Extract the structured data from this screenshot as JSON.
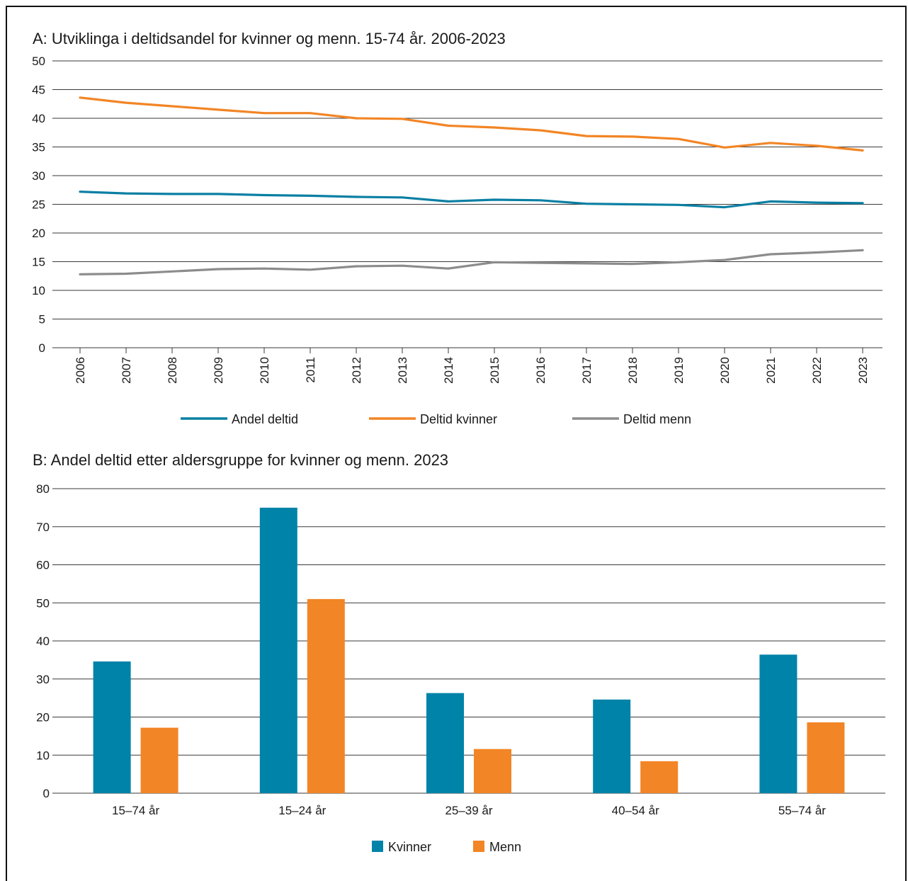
{
  "chart_data": [
    {
      "type": "line",
      "title": "A: Utviklinga i deltidsandel for kvinner og menn. 15-74 år. 2006-2023",
      "xlabel": "",
      "ylabel": "",
      "ylim": [
        0,
        50
      ],
      "yticks": [
        "0",
        "5",
        "10",
        "15",
        "20",
        "25",
        "30",
        "35",
        "40",
        "45",
        "50"
      ],
      "grid": true,
      "legend": "bottom",
      "x": [
        "2006",
        "2007",
        "2008",
        "2009",
        "2010",
        "2011",
        "2012",
        "2013",
        "2014",
        "2015",
        "2016",
        "2017",
        "2018",
        "2019",
        "2020",
        "2021",
        "2022",
        "2023"
      ],
      "series": [
        {
          "name": "Andel deltid",
          "color": "#0a7fa3",
          "values": [
            27.2,
            26.9,
            26.8,
            26.8,
            26.6,
            26.5,
            26.3,
            26.2,
            25.5,
            25.8,
            25.7,
            25.1,
            25.0,
            24.9,
            24.5,
            25.5,
            25.3,
            25.2
          ]
        },
        {
          "name": "Deltid kvinner",
          "color": "#f28525",
          "values": [
            43.6,
            42.7,
            42.1,
            41.5,
            40.9,
            40.9,
            40.0,
            39.9,
            38.7,
            38.4,
            37.9,
            36.9,
            36.8,
            36.4,
            34.9,
            35.7,
            35.2,
            34.4
          ]
        },
        {
          "name": "Deltid menn",
          "color": "#8c8c8c",
          "values": [
            12.8,
            12.9,
            13.3,
            13.7,
            13.8,
            13.6,
            14.2,
            14.3,
            13.8,
            14.9,
            14.8,
            14.7,
            14.6,
            14.9,
            15.3,
            16.3,
            16.6,
            17.0
          ]
        }
      ]
    },
    {
      "type": "bar",
      "title": "B: Andel deltid etter aldersgruppe for kvinner og menn. 2023",
      "xlabel": "",
      "ylabel": "",
      "ylim": [
        0,
        80
      ],
      "yticks": [
        "0",
        "10",
        "20",
        "30",
        "40",
        "50",
        "60",
        "70",
        "80"
      ],
      "grid": true,
      "legend": "bottom",
      "categories": [
        "15–74 år",
        "15–24 år",
        "25–39 år",
        "40–54 år",
        "55–74 år"
      ],
      "series": [
        {
          "name": "Kvinner",
          "color": "#0083a8",
          "values": [
            34.6,
            75.0,
            26.3,
            24.6,
            36.4
          ]
        },
        {
          "name": "Menn",
          "color": "#f28525",
          "values": [
            17.2,
            51.0,
            11.6,
            8.4,
            18.6
          ]
        }
      ]
    }
  ]
}
